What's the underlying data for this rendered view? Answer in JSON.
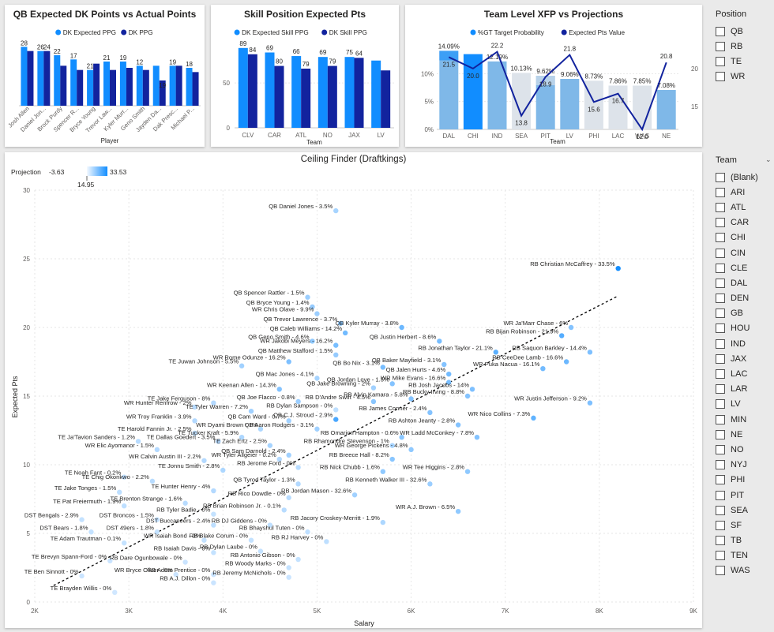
{
  "chart_data": [
    {
      "id": "qb",
      "type": "bar",
      "title": "QB Expected DK Points vs Actual Points",
      "xlabel": "Player",
      "ylabel": "",
      "ylim": [
        0,
        30
      ],
      "categories": [
        "Josh Allen",
        "Daniel Jon...",
        "Brock Purdy",
        "Spencer R...",
        "Bryce Young",
        "Trevor Law...",
        "Kyler Murr...",
        "Geno Smith",
        "Jayden Da...",
        "Dak Presc...",
        "Michael P..."
      ],
      "series": [
        {
          "name": "DK Expected PPG",
          "values": [
            28,
            26,
            24,
            22,
            17,
            21,
            21,
            19,
            19,
            19,
            18
          ]
        },
        {
          "name": "DK PPG",
          "values": [
            26,
            26,
            19,
            17,
            20,
            17,
            18,
            17,
            12,
            19,
            16
          ]
        }
      ],
      "labels": [
        "28",
        "26",
        "24",
        "22",
        "17",
        "21",
        "21",
        "19",
        "12",
        "19",
        "19",
        "18"
      ]
    },
    {
      "id": "skill",
      "type": "bar",
      "title": "Skill Position Expected Pts",
      "xlabel": "Team",
      "ylabel": "",
      "ylim": [
        0,
        95
      ],
      "yticks": [
        "0",
        "50"
      ],
      "categories": [
        "CLV",
        "CAR",
        "ATL",
        "NO",
        "JAX",
        "LV"
      ],
      "series": [
        {
          "name": "DK Expected Skill PPG",
          "values": [
            89,
            84,
            80,
            79,
            79,
            75
          ]
        },
        {
          "name": "DK Skill PPG",
          "values": [
            82,
            69,
            66,
            69,
            78,
            64
          ]
        }
      ],
      "labels": [
        "89",
        "84",
        "69",
        "80",
        "66",
        "79",
        "69",
        "79",
        "75",
        "64"
      ]
    },
    {
      "id": "team",
      "type": "bar+line",
      "title": "Team Level XFP vs Projections",
      "xlabel": "Team",
      "ylim_left": [
        0,
        15
      ],
      "ylim_right": [
        12,
        23
      ],
      "yticks_left": [
        "0%",
        "5%",
        "10%"
      ],
      "yticks_right": [
        "15",
        "20"
      ],
      "categories": [
        "DAL",
        "CHI",
        "IND",
        "SEA",
        "PIT",
        "LV",
        "PHI",
        "LAC",
        "WAS",
        "NE"
      ],
      "series": [
        {
          "name": "%GT Target Probability",
          "values": [
            14.09,
            13.5,
            12.19,
            10.13,
            9.62,
            9.06,
            8.73,
            7.86,
            7.85,
            7.08
          ]
        },
        {
          "name": "Expected Pts Value",
          "values": [
            21.5,
            20.0,
            22.2,
            13.8,
            18.9,
            21.8,
            15.6,
            16.7,
            12.0,
            20.8
          ]
        }
      ],
      "pct_labels": [
        "14.09%",
        "12.19%",
        "10.13%",
        "9.62%",
        "9.06%",
        "8.73%",
        "7.86%",
        "7.85%",
        "7.08%"
      ],
      "pts_labels": [
        "21.5",
        "20.0",
        "22.2",
        "13.8",
        "18.9",
        "21.8",
        "15.6",
        "16.7",
        "12.0",
        "20.8"
      ]
    },
    {
      "id": "ceiling",
      "type": "scatter",
      "title": "Ceiling Finder (Draftkings)",
      "xlabel": "Salary",
      "ylabel": "Expected Pts",
      "xlim": [
        2000,
        9000
      ],
      "ylim": [
        0,
        30
      ],
      "xticks": [
        "2K",
        "3K",
        "4K",
        "5K",
        "6K",
        "7K",
        "8K",
        "9K"
      ],
      "yticks": [
        "0",
        "5",
        "10",
        "15",
        "20",
        "25",
        "30"
      ],
      "legend_title": "Projection",
      "legend_min": "-3.63",
      "legend_mid": "14.95",
      "legend_max": "33.53",
      "trendline": {
        "x": [
          2200,
          8200
        ],
        "y": [
          1.2,
          22.3
        ]
      },
      "points": [
        {
          "label": "QB Daniel Jones - 3.5%",
          "x": 5200,
          "y": 28.5,
          "proj": 8
        },
        {
          "label": "RB Christian McCaffrey - 33.5%",
          "x": 8200,
          "y": 24.3,
          "proj": 33
        },
        {
          "label": "QB Spencer Rattler - 1.5%",
          "x": 4900,
          "y": 22.2,
          "proj": 10
        },
        {
          "label": "QB Bryce Young - 1.4%",
          "x": 4950,
          "y": 21.5,
          "proj": 11
        },
        {
          "label": "WR Chris Olave - 9.9%",
          "x": 5000,
          "y": 21.0,
          "proj": 10
        },
        {
          "label": "QB Trevor Lawrence - 3.7%",
          "x": 5250,
          "y": 20.3,
          "proj": 13
        },
        {
          "label": "QB Kyler Murray - 3.8%",
          "x": 5900,
          "y": 20.0,
          "proj": 18
        },
        {
          "label": "WR Ja'Marr Chase - 6%",
          "x": 7700,
          "y": 20.0,
          "proj": 14
        },
        {
          "label": "QB Caleb Williams - 14.2%",
          "x": 5300,
          "y": 19.6,
          "proj": 17
        },
        {
          "label": "RB Bijan Robinson - 21.9%",
          "x": 7600,
          "y": 19.4,
          "proj": 22
        },
        {
          "label": "QB Geno Smith - 4.6%",
          "x": 4950,
          "y": 19.0,
          "proj": 12
        },
        {
          "label": "QB Justin Herbert - 8.6%",
          "x": 6300,
          "y": 19.0,
          "proj": 16
        },
        {
          "label": "WR Jakobi Meyers - 16.2%",
          "x": 5200,
          "y": 18.7,
          "proj": 16
        },
        {
          "label": "RB Jonathan Taylor - 21.1%",
          "x": 6900,
          "y": 18.2,
          "proj": 21
        },
        {
          "label": "RB Saquon Barkley - 14.4%",
          "x": 7900,
          "y": 18.2,
          "proj": 15
        },
        {
          "label": "QB Matthew Stafford - 1.5%",
          "x": 5200,
          "y": 18.0,
          "proj": 11
        },
        {
          "label": "WR Rome Odunze - 16.2%",
          "x": 4700,
          "y": 17.5,
          "proj": 15
        },
        {
          "label": "RB CeeDee Lamb - 16.6%",
          "x": 7650,
          "y": 17.5,
          "proj": 18
        },
        {
          "label": "QB Baker Mayfield - 3.1%",
          "x": 6350,
          "y": 17.3,
          "proj": 14
        },
        {
          "label": "TE Juwan Johnson - 5.5%",
          "x": 4200,
          "y": 17.2,
          "proj": 9
        },
        {
          "label": "QB Bo Nix - 3.1%",
          "x": 5700,
          "y": 17.1,
          "proj": 16
        },
        {
          "label": "WR Puka Nacua - 16.1%",
          "x": 7400,
          "y": 17.0,
          "proj": 17
        },
        {
          "label": "QB Jalen Hurts - 4.6%",
          "x": 6400,
          "y": 16.6,
          "proj": 17
        },
        {
          "label": "QB Mac Jones - 4.1%",
          "x": 5000,
          "y": 16.3,
          "proj": 8
        },
        {
          "label": "QB Jordan Love - 1.5%",
          "x": 5800,
          "y": 15.9,
          "proj": 14
        },
        {
          "label": "WR Mike Evans - 16.6%",
          "x": 6400,
          "y": 16.0,
          "proj": 16
        },
        {
          "label": "RB Josh Jacobs - 14%",
          "x": 6650,
          "y": 15.5,
          "proj": 15
        },
        {
          "label": "WR Keenan Allen - 14.3%",
          "x": 4600,
          "y": 15.5,
          "proj": 14
        },
        {
          "label": "QB Jake Browning - 2%",
          "x": 5600,
          "y": 15.6,
          "proj": 9
        },
        {
          "label": "RB Bucky Irving - 8.8%",
          "x": 6600,
          "y": 15.0,
          "proj": 14
        },
        {
          "label": "RB Alvin Kamara - 5.8%",
          "x": 6000,
          "y": 14.8,
          "proj": 14
        },
        {
          "label": "WR Justin Jefferson - 9.2%",
          "x": 7900,
          "y": 14.5,
          "proj": 15
        },
        {
          "label": "TE Jake Ferguson - 8%",
          "x": 3900,
          "y": 14.5,
          "proj": 6
        },
        {
          "label": "QB Joe Flacco - 0.8%",
          "x": 4800,
          "y": 14.6,
          "proj": 10
        },
        {
          "label": "RB D'Andre Swift - 4.5%",
          "x": 5600,
          "y": 14.6,
          "proj": 13
        },
        {
          "label": "WR Hunter Renfrow - 2%",
          "x": 3700,
          "y": 14.2,
          "proj": 5
        },
        {
          "label": "TE Tyler Warren - 7.2%",
          "x": 4300,
          "y": 13.9,
          "proj": 9
        },
        {
          "label": "RB Dylan Sampson - 0%",
          "x": 5200,
          "y": 14.0,
          "proj": 4
        },
        {
          "label": "RB James Conner - 2.4%",
          "x": 6200,
          "y": 13.8,
          "proj": 14
        },
        {
          "label": "WR Nico Collins - 7.3%",
          "x": 7300,
          "y": 13.4,
          "proj": 20
        },
        {
          "label": "QB C.J. Stroud - 2.9%",
          "x": 5200,
          "y": 13.3,
          "proj": 24
        },
        {
          "label": "QB Cam Ward - 0.7%",
          "x": 4700,
          "y": 13.2,
          "proj": 9
        },
        {
          "label": "WR Troy Franklin - 3.9%",
          "x": 3700,
          "y": 13.2,
          "proj": 6
        },
        {
          "label": "RB Ashton Jeanty - 2.8%",
          "x": 6500,
          "y": 12.9,
          "proj": 14
        },
        {
          "label": "WR Dyami Brown - 1%",
          "x": 4400,
          "y": 12.6,
          "proj": 7
        },
        {
          "label": "QB Aaron Rodgers - 3.1%",
          "x": 5000,
          "y": 12.6,
          "proj": 9
        },
        {
          "label": "TE Harold Fannin Jr. - 2.5%",
          "x": 3700,
          "y": 12.3,
          "proj": 4
        },
        {
          "label": "RB Omarion Hampton - 0.6%",
          "x": 5900,
          "y": 12.0,
          "proj": 13
        },
        {
          "label": "WR Ladd McConkey - 7.8%",
          "x": 6700,
          "y": 12.0,
          "proj": 14
        },
        {
          "label": "TE Ja'Tavion Sanders - 1.2%",
          "x": 3100,
          "y": 11.7,
          "proj": 5
        },
        {
          "label": "TE Dallas Goedert - 3.5%",
          "x": 3950,
          "y": 11.7,
          "proj": 6
        },
        {
          "label": "TE Tucker Kraft - 5.9%",
          "x": 4200,
          "y": 12.0,
          "proj": 7
        },
        {
          "label": "TE Zach Ertz - 2.5%",
          "x": 4500,
          "y": 11.4,
          "proj": 8
        },
        {
          "label": "RB Rhamondre Stevenson - 1%",
          "x": 5800,
          "y": 11.4,
          "proj": 8
        },
        {
          "label": "WR George Pickens - 4.8%",
          "x": 6000,
          "y": 11.1,
          "proj": 12
        },
        {
          "label": "WR Elic Ayomanor - 1.5%",
          "x": 3300,
          "y": 11.1,
          "proj": 6
        },
        {
          "label": "QB Sam Darnold - 2.4%",
          "x": 4700,
          "y": 10.7,
          "proj": 9
        },
        {
          "label": "RB Breece Hall - 8.2%",
          "x": 5800,
          "y": 10.4,
          "proj": 13
        },
        {
          "label": "WR Calvin Austin III - 2.2%",
          "x": 3800,
          "y": 10.3,
          "proj": 6
        },
        {
          "label": "WR Tyler Allgeier - 0.2%",
          "x": 4600,
          "y": 10.4,
          "proj": 6
        },
        {
          "label": "RB Jerome Ford - 0%",
          "x": 4800,
          "y": 9.8,
          "proj": 5
        },
        {
          "label": "TE Jonnu Smith - 2.8%",
          "x": 4000,
          "y": 9.6,
          "proj": 7
        },
        {
          "label": "RB Nick Chubb - 1.6%",
          "x": 5700,
          "y": 9.5,
          "proj": 12
        },
        {
          "label": "WR Tee Higgins - 2.8%",
          "x": 6600,
          "y": 9.5,
          "proj": 12
        },
        {
          "label": "TE Noah Fant - 0.2%",
          "x": 2950,
          "y": 9.1,
          "proj": 4
        },
        {
          "label": "QB Tyrod Taylor - 1.3%",
          "x": 4800,
          "y": 8.6,
          "proj": 6
        },
        {
          "label": "TE Chig Okonkwo - 2.2%",
          "x": 3250,
          "y": 8.8,
          "proj": 5
        },
        {
          "label": "RB Kenneth Walker III - 32.6%",
          "x": 6200,
          "y": 8.6,
          "proj": 10
        },
        {
          "label": "TE Jake Tonges - 1.5%",
          "x": 2900,
          "y": 8.0,
          "proj": 4
        },
        {
          "label": "TE Hunter Henry - 4%",
          "x": 3900,
          "y": 8.1,
          "proj": 6
        },
        {
          "label": "RB Rico Dowdle - 0%",
          "x": 4700,
          "y": 7.6,
          "proj": 5
        },
        {
          "label": "RB Jordan Mason - 32.6%",
          "x": 5400,
          "y": 7.8,
          "proj": 9
        },
        {
          "label": "TE Brenton Strange - 1.6%",
          "x": 3600,
          "y": 7.2,
          "proj": 5
        },
        {
          "label": "TE Pat Freiermuth - 1.9%",
          "x": 2950,
          "y": 7.0,
          "proj": 4
        },
        {
          "label": "RB Tyler Badie - 0%",
          "x": 3900,
          "y": 6.4,
          "proj": 3
        },
        {
          "label": "RB Brian Robinson Jr. - 0.1%",
          "x": 4650,
          "y": 6.7,
          "proj": 5
        },
        {
          "label": "WR A.J. Brown - 6.5%",
          "x": 6500,
          "y": 6.6,
          "proj": 12
        },
        {
          "label": "DST Bengals - 2.9%",
          "x": 2500,
          "y": 6.0,
          "proj": 3
        },
        {
          "label": "DST Broncos - 1.5%",
          "x": 3300,
          "y": 6.0,
          "proj": 3
        },
        {
          "label": "DST Buccaneers - 2.4%",
          "x": 3900,
          "y": 5.6,
          "proj": 4
        },
        {
          "label": "RB DJ Giddens - 0%",
          "x": 4500,
          "y": 5.6,
          "proj": 4
        },
        {
          "label": "RB Jacory Croskey-Merritt - 1.9%",
          "x": 5700,
          "y": 5.8,
          "proj": 7
        },
        {
          "label": "DST Bears - 1.8%",
          "x": 2600,
          "y": 5.1,
          "proj": 3
        },
        {
          "label": "DST 49ers - 1.8%",
          "x": 3300,
          "y": 5.1,
          "proj": 3
        },
        {
          "label": "RB Bhayshul Tuten - 0%",
          "x": 4900,
          "y": 5.1,
          "proj": 4
        },
        {
          "label": "WR Isaiah Bond - 0%",
          "x": 3800,
          "y": 4.5,
          "proj": 3
        },
        {
          "label": "RB Blake Corum - 0%",
          "x": 4300,
          "y": 4.5,
          "proj": 3
        },
        {
          "label": "RB RJ Harvey - 0%",
          "x": 5100,
          "y": 4.4,
          "proj": 4
        },
        {
          "label": "TE Adam Trautman - 0.1%",
          "x": 2950,
          "y": 4.3,
          "proj": 3
        },
        {
          "label": "RB Isaiah Davis - 0%",
          "x": 3900,
          "y": 3.6,
          "proj": 3
        },
        {
          "label": "RB Dylan Laube - 0%",
          "x": 4400,
          "y": 3.7,
          "proj": 3
        },
        {
          "label": "RB Antonio Gibson - 0%",
          "x": 4800,
          "y": 3.1,
          "proj": 3
        },
        {
          "label": "TE Brevyn Spann-Ford - 0%",
          "x": 2800,
          "y": 3.0,
          "proj": 2
        },
        {
          "label": "RB Dare Ogunbowale - 0%",
          "x": 3600,
          "y": 2.9,
          "proj": 2
        },
        {
          "label": "RB Woody Marks - 0%",
          "x": 4700,
          "y": 2.5,
          "proj": 3
        },
        {
          "label": "RB Adam Prentice - 0%",
          "x": 3900,
          "y": 2.0,
          "proj": 2
        },
        {
          "label": "WR Bryce Oliver - 0%",
          "x": 3500,
          "y": 2.0,
          "proj": 2
        },
        {
          "label": "TE Ben Sinnott - 0%",
          "x": 2500,
          "y": 1.9,
          "proj": 2
        },
        {
          "label": "RB Jeremy McNichols - 0%",
          "x": 4700,
          "y": 1.8,
          "proj": 2
        },
        {
          "label": "RB A.J. Dillon - 0%",
          "x": 3900,
          "y": 1.4,
          "proj": 2
        },
        {
          "label": "TE Brayden Willis - 0%",
          "x": 2850,
          "y": 0.7,
          "proj": 1
        }
      ]
    }
  ],
  "legends": {
    "qb": [
      "DK Expected PPG",
      "DK PPG"
    ],
    "skill": [
      "DK Expected Skill PPG",
      "DK Skill PPG"
    ],
    "team": [
      "%GT Target Probability",
      "Expected Pts Value"
    ]
  },
  "colors": {
    "expected": "#118dff",
    "actual": "#12239e",
    "bar_light": "#dde3ea",
    "trend": "#000000"
  },
  "slicers": {
    "position": {
      "title": "Position",
      "items": [
        "QB",
        "RB",
        "TE",
        "WR"
      ]
    },
    "team": {
      "title": "Team",
      "items": [
        "(Blank)",
        "ARI",
        "ATL",
        "CAR",
        "CHI",
        "CIN",
        "CLE",
        "DAL",
        "DEN",
        "GB",
        "HOU",
        "IND",
        "JAX",
        "LAC",
        "LAR",
        "LV",
        "MIN",
        "NE",
        "NO",
        "NYJ",
        "PHI",
        "PIT",
        "SEA",
        "SF",
        "TB",
        "TEN",
        "WAS"
      ]
    }
  }
}
